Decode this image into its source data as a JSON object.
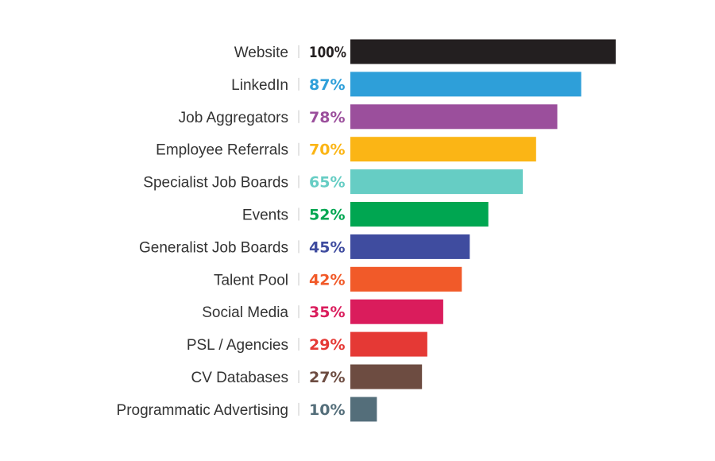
{
  "chart_data": {
    "type": "bar",
    "orientation": "horizontal",
    "categories": [
      "Website",
      "LinkedIn",
      "Job Aggregators",
      "Employee Referrals",
      "Specialist Job Boards",
      "Events",
      "Generalist Job Boards",
      "Talent Pool",
      "Social Media",
      "PSL / Agencies",
      "CV Databases",
      "Programmatic Advertising"
    ],
    "values": [
      100,
      87,
      78,
      70,
      65,
      52,
      45,
      42,
      35,
      29,
      27,
      10
    ],
    "value_labels": [
      "100%",
      "87%",
      "78%",
      "70%",
      "65%",
      "52%",
      "45%",
      "42%",
      "35%",
      "29%",
      "27%",
      "10%"
    ],
    "colors": [
      "#231f20",
      "#2e9fd9",
      "#9b4f9c",
      "#fbb515",
      "#66cdc4",
      "#00a651",
      "#3f4c9f",
      "#f15a29",
      "#da1c5c",
      "#e53935",
      "#6d4c41",
      "#546e7a"
    ],
    "xlim": [
      0,
      100
    ],
    "grid": false,
    "legend": "none",
    "title": "",
    "xlabel": "",
    "ylabel": ""
  }
}
